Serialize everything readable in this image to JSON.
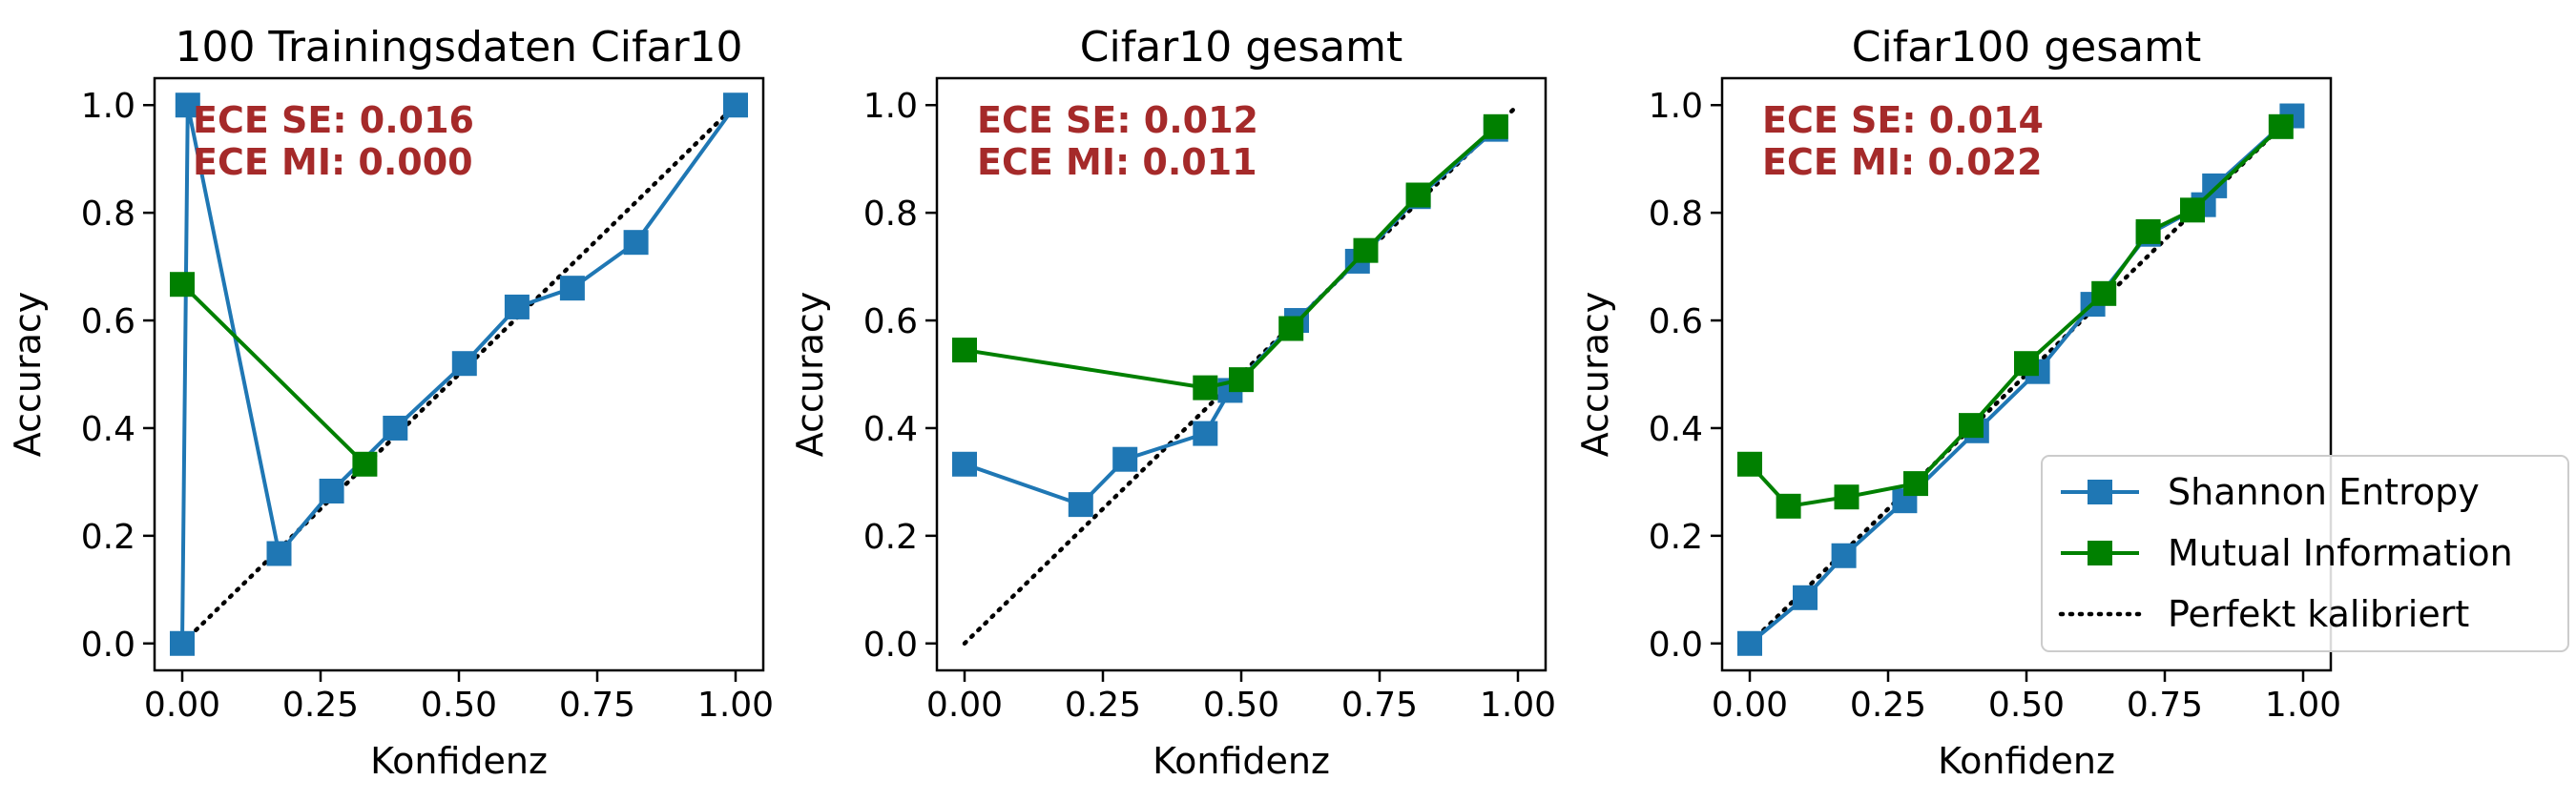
{
  "chart_data": [
    {
      "type": "line",
      "title": "100 Trainingsdaten Cifar10",
      "xlabel": "Konfidenz",
      "ylabel": "Accuracy",
      "xlim": [
        -0.05,
        1.05
      ],
      "ylim": [
        -0.05,
        1.05
      ],
      "xticks": [
        "0.00",
        "0.25",
        "0.50",
        "0.75",
        "1.00"
      ],
      "yticks": [
        "0.0",
        "0.2",
        "0.4",
        "0.6",
        "0.8",
        "1.0"
      ],
      "grid": false,
      "annotations": [
        "ECE SE: 0.016",
        "ECE MI: 0.000"
      ],
      "series": [
        {
          "name": "Shannon Entropy",
          "x": [
            0.0,
            0.01,
            0.175,
            0.27,
            0.385,
            0.51,
            0.605,
            0.705,
            0.82,
            1.0
          ],
          "y": [
            0.0,
            1.0,
            0.167,
            0.283,
            0.4,
            0.52,
            0.625,
            0.66,
            0.745,
            1.0
          ]
        },
        {
          "name": "Mutual Information",
          "x": [
            0.0,
            0.33
          ],
          "y": [
            0.667,
            0.333
          ]
        },
        {
          "name": "Perfekt kalibriert",
          "x": [
            0,
            1
          ],
          "y": [
            0,
            1
          ]
        }
      ]
    },
    {
      "type": "line",
      "title": "Cifar10 gesamt",
      "xlabel": "Konfidenz",
      "ylabel": "Accuracy",
      "xlim": [
        -0.05,
        1.05
      ],
      "ylim": [
        -0.05,
        1.05
      ],
      "xticks": [
        "0.00",
        "0.25",
        "0.50",
        "0.75",
        "1.00"
      ],
      "yticks": [
        "0.0",
        "0.2",
        "0.4",
        "0.6",
        "0.8",
        "1.0"
      ],
      "grid": false,
      "annotations": [
        "ECE SE: 0.012",
        "ECE MI: 0.011"
      ],
      "series": [
        {
          "name": "Shannon Entropy",
          "x": [
            0.0,
            0.21,
            0.29,
            0.435,
            0.48,
            0.6,
            0.71,
            0.82,
            0.96
          ],
          "y": [
            0.333,
            0.258,
            0.342,
            0.39,
            0.47,
            0.6,
            0.71,
            0.83,
            0.955
          ]
        },
        {
          "name": "Mutual Information",
          "x": [
            0.0,
            0.435,
            0.5,
            0.59,
            0.725,
            0.82,
            0.96
          ],
          "y": [
            0.545,
            0.475,
            0.49,
            0.585,
            0.73,
            0.833,
            0.96
          ]
        },
        {
          "name": "Perfekt kalibriert",
          "x": [
            0,
            1
          ],
          "y": [
            0,
            1
          ]
        }
      ]
    },
    {
      "type": "line",
      "title": "Cifar100 gesamt",
      "xlabel": "Konfidenz",
      "ylabel": "Accuracy",
      "xlim": [
        -0.05,
        1.05
      ],
      "ylim": [
        -0.05,
        1.05
      ],
      "xticks": [
        "0.00",
        "0.25",
        "0.50",
        "0.75",
        "1.00"
      ],
      "yticks": [
        "0.0",
        "0.2",
        "0.4",
        "0.6",
        "0.8",
        "1.0"
      ],
      "grid": false,
      "legend": "lower-right",
      "annotations": [
        "ECE SE: 0.014",
        "ECE MI: 0.022"
      ],
      "series": [
        {
          "name": "Shannon Entropy",
          "x": [
            0.0,
            0.1,
            0.17,
            0.28,
            0.41,
            0.52,
            0.62,
            0.72,
            0.82,
            0.84,
            0.98
          ],
          "y": [
            0.0,
            0.085,
            0.163,
            0.265,
            0.395,
            0.505,
            0.63,
            0.76,
            0.815,
            0.85,
            0.98
          ]
        },
        {
          "name": "Mutual Information",
          "x": [
            0.0,
            0.07,
            0.175,
            0.3,
            0.4,
            0.5,
            0.64,
            0.72,
            0.8,
            0.96
          ],
          "y": [
            0.333,
            0.255,
            0.272,
            0.297,
            0.405,
            0.52,
            0.65,
            0.765,
            0.805,
            0.96
          ]
        },
        {
          "name": "Perfekt kalibriert",
          "x": [
            0,
            1
          ],
          "y": [
            0,
            1
          ]
        }
      ]
    }
  ],
  "legend": {
    "entries": [
      "Shannon Entropy",
      "Mutual Information",
      "Perfekt kalibriert"
    ]
  },
  "colors": {
    "shannon": "#1f77b4",
    "mutual": "#008000",
    "perfect": "#000000",
    "annotation": "#a52a2a"
  }
}
